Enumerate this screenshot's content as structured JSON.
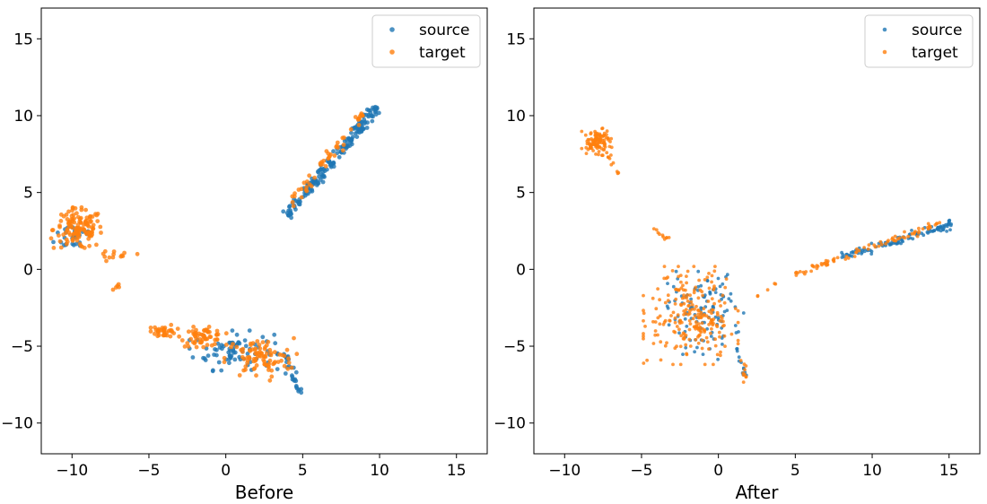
{
  "chart_data": [
    {
      "type": "scatter",
      "xlabel": "Before",
      "ylabel": "",
      "xlim": [
        -12,
        17
      ],
      "ylim": [
        -12,
        17
      ],
      "xticks": [
        -10,
        -5,
        0,
        5,
        10,
        15
      ],
      "yticks": [
        -10,
        -5,
        0,
        5,
        10,
        15
      ],
      "xtick_labels": [
        "−10",
        "−5",
        "0",
        "5",
        "10",
        "15"
      ],
      "ytick_labels": [
        "−10",
        "−5",
        "0",
        "5",
        "10",
        "15"
      ],
      "legend_position": "top-right",
      "grid": false,
      "series": [
        {
          "name": "source",
          "color": "#1f77b4",
          "clusters": [
            {
              "shape": "line",
              "from": [
                4.0,
                3.5
              ],
              "to": [
                9.8,
                10.6
              ],
              "spread": 0.35,
              "count": 180
            },
            {
              "shape": "blob",
              "center": [
                -9.8,
                2.2
              ],
              "radius": [
                1.3,
                1.0
              ],
              "count": 30
            },
            {
              "shape": "blob",
              "center": [
                0.5,
                -5.3
              ],
              "radius": [
                2.6,
                1.2
              ],
              "count": 80
            },
            {
              "shape": "line",
              "from": [
                3.8,
                -5.5
              ],
              "to": [
                5.0,
                -8.3
              ],
              "spread": 0.25,
              "count": 30
            }
          ]
        },
        {
          "name": "target",
          "color": "#ff7f0e",
          "clusters": [
            {
              "shape": "line",
              "from": [
                4.2,
                4.2
              ],
              "to": [
                9.0,
                10.3
              ],
              "spread": 0.3,
              "count": 50
            },
            {
              "shape": "blob",
              "center": [
                -9.6,
                2.6
              ],
              "radius": [
                1.6,
                1.3
              ],
              "count": 130
            },
            {
              "shape": "line",
              "from": [
                -8.0,
                0.8
              ],
              "to": [
                -5.5,
                1.2
              ],
              "spread": 0.3,
              "count": 12
            },
            {
              "shape": "blob",
              "center": [
                -7.0,
                -1.1
              ],
              "radius": [
                0.3,
                0.2
              ],
              "count": 5
            },
            {
              "shape": "blob",
              "center": [
                -4.0,
                -4.0
              ],
              "radius": [
                0.8,
                0.4
              ],
              "count": 35
            },
            {
              "shape": "blob",
              "center": [
                -1.5,
                -4.4
              ],
              "radius": [
                1.4,
                0.6
              ],
              "count": 60
            },
            {
              "shape": "blob",
              "center": [
                2.2,
                -5.8
              ],
              "radius": [
                2.2,
                1.3
              ],
              "count": 90
            }
          ]
        }
      ]
    },
    {
      "type": "scatter",
      "xlabel": "After",
      "ylabel": "",
      "xlim": [
        -12,
        17
      ],
      "ylim": [
        -12,
        17
      ],
      "xticks": [
        -10,
        -5,
        0,
        5,
        10,
        15
      ],
      "yticks": [
        -10,
        -5,
        0,
        5,
        10,
        15
      ],
      "xtick_labels": [
        "−10",
        "−5",
        "0",
        "5",
        "10",
        "15"
      ],
      "ytick_labels": [
        "−10",
        "−5",
        "0",
        "5",
        "10",
        "15"
      ],
      "legend_position": "top-right",
      "grid": false,
      "series": [
        {
          "name": "source",
          "color": "#1f77b4",
          "clusters": [
            {
              "shape": "line",
              "from": [
                8.0,
                0.8
              ],
              "to": [
                15.3,
                3.0
              ],
              "spread": 0.25,
              "count": 110
            },
            {
              "shape": "blob",
              "center": [
                -1.0,
                -3.0
              ],
              "radius": [
                2.4,
                2.6
              ],
              "count": 110
            },
            {
              "shape": "line",
              "from": [
                1.2,
                -5.0
              ],
              "to": [
                1.7,
                -7.0
              ],
              "spread": 0.2,
              "count": 12
            }
          ]
        },
        {
          "name": "target",
          "color": "#ff7f0e",
          "clusters": [
            {
              "shape": "blob",
              "center": [
                -7.9,
                8.3
              ],
              "radius": [
                0.9,
                0.8
              ],
              "count": 110
            },
            {
              "shape": "line",
              "from": [
                -7.2,
                7.5
              ],
              "to": [
                -6.3,
                6.0
              ],
              "spread": 0.2,
              "count": 8
            },
            {
              "shape": "line",
              "from": [
                5.0,
                -0.3
              ],
              "to": [
                14.5,
                3.0
              ],
              "spread": 0.2,
              "count": 80
            },
            {
              "shape": "blob",
              "center": [
                -1.8,
                -3.0
              ],
              "radius": [
                2.8,
                2.9
              ],
              "count": 230
            },
            {
              "shape": "line",
              "from": [
                -4.5,
                2.7
              ],
              "to": [
                -2.3,
                1.5
              ],
              "spread": 0.3,
              "count": 10
            },
            {
              "shape": "line",
              "from": [
                1.6,
                -5.5
              ],
              "to": [
                1.8,
                -7.4
              ],
              "spread": 0.15,
              "count": 10
            },
            {
              "shape": "line",
              "from": [
                2.5,
                -1.8
              ],
              "to": [
                4.8,
                -0.2
              ],
              "spread": 0.1,
              "count": 5
            }
          ]
        }
      ]
    }
  ]
}
